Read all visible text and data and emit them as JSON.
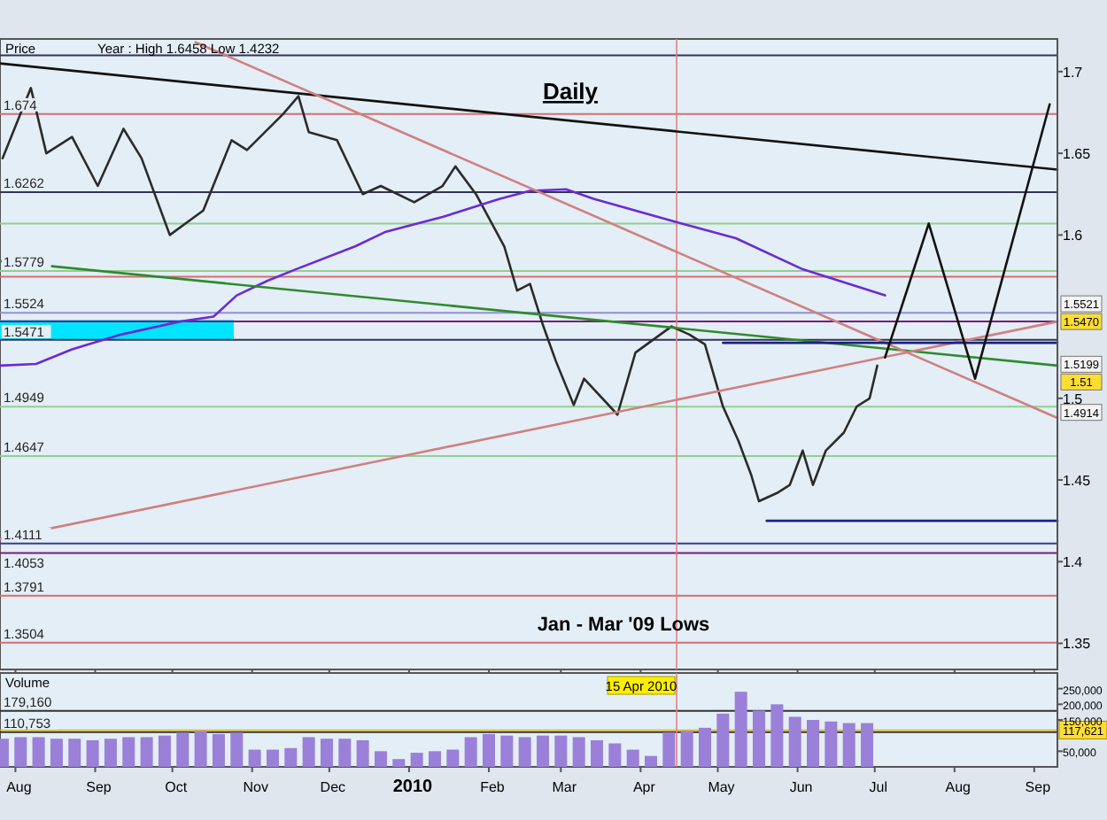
{
  "chart_data": [
    {
      "type": "line",
      "title": "Daily",
      "ylabel": "Price",
      "xlim": [
        "2009-07-26",
        "2010-09-10"
      ],
      "ylim": [
        1.334,
        1.72
      ],
      "xticks": [
        {
          "value": "2009-08-01",
          "label": null
        },
        {
          "value": "2009-09-01",
          "label": null
        },
        {
          "value": "2009-10-01",
          "label": null
        },
        {
          "value": "2009-11-01",
          "label": null
        },
        {
          "value": "2009-12-01",
          "label": null
        },
        {
          "value": "2010-01-01",
          "label": null
        },
        {
          "value": "2010-02-01",
          "label": null
        },
        {
          "value": "2010-03-01",
          "label": null
        },
        {
          "value": "2010-04-01",
          "label": null
        },
        {
          "value": "2010-05-01",
          "label": null
        },
        {
          "value": "2010-06-01",
          "label": null
        },
        {
          "value": "2010-07-01",
          "label": null
        },
        {
          "value": "2010-08-01",
          "label": null
        },
        {
          "value": "2010-09-01",
          "label": null
        }
      ],
      "yticks": [
        {
          "value": 1.35,
          "label": "1.35"
        },
        {
          "value": 1.4,
          "label": "1.4"
        },
        {
          "value": 1.45,
          "label": "1.45"
        },
        {
          "value": 1.5,
          "label": "1.5"
        },
        {
          "value": 1.6,
          "label": "1.6"
        },
        {
          "value": 1.65,
          "label": "1.65"
        },
        {
          "value": 1.7,
          "label": "1.7"
        }
      ],
      "tick_labels": "y",
      "series": [
        {
          "color": "#2b2b2b",
          "x": [
            "2009-07-27",
            "2009-08-07",
            "2009-08-13",
            "2009-08-23",
            "2009-09-02",
            "2009-09-12",
            "2009-09-19",
            "2009-09-30",
            "2009-10-13",
            "2009-10-24",
            "2009-10-30",
            "2009-11-13",
            "2009-11-19",
            "2009-11-23",
            "2009-12-04",
            "2009-12-14",
            "2009-12-21",
            "2010-01-03",
            "2010-01-14",
            "2010-01-19",
            "2010-01-27",
            "2010-02-07",
            "2010-02-12",
            "2010-02-17",
            "2010-02-22",
            "2010-02-27",
            "2010-03-06",
            "2010-03-10",
            "2010-03-23",
            "2010-03-30",
            "2010-04-13",
            "2010-04-20",
            "2010-04-26",
            "2010-05-03",
            "2010-05-09",
            "2010-05-14",
            "2010-05-17",
            "2010-05-24",
            "2010-05-29",
            "2010-06-03",
            "2010-06-07",
            "2010-06-12",
            "2010-06-19",
            "2010-06-24",
            "2010-06-29",
            "2010-07-02"
          ],
          "values": [
            1.647,
            1.69,
            1.65,
            1.66,
            1.63,
            1.665,
            1.647,
            1.6,
            1.615,
            1.658,
            1.652,
            1.674,
            1.685,
            1.663,
            1.658,
            1.625,
            1.63,
            1.62,
            1.63,
            1.642,
            1.625,
            1.593,
            1.566,
            1.57,
            1.545,
            1.523,
            1.496,
            1.512,
            1.49,
            1.528,
            1.544,
            1.539,
            1.533,
            1.495,
            1.474,
            1.453,
            1.437,
            1.442,
            1.447,
            1.468,
            1.447,
            1.468,
            1.479,
            1.495,
            1.5,
            1.52
          ]
        },
        {
          "color": "#6a2bd6",
          "x": [
            "2009-07-26",
            "2009-08-09",
            "2009-08-23",
            "2009-09-11",
            "2009-10-04",
            "2009-10-17",
            "2009-10-26",
            "2009-11-07",
            "2009-11-18",
            "2009-12-11",
            "2009-12-23",
            "2010-01-14",
            "2010-02-05",
            "2010-02-17",
            "2010-03-03",
            "2010-03-14",
            "2010-04-17",
            "2010-05-08",
            "2010-06-03",
            "2010-07-05"
          ],
          "values": [
            1.52,
            1.521,
            1.53,
            1.539,
            1.547,
            1.55,
            1.563,
            1.572,
            1.579,
            1.593,
            1.602,
            1.611,
            1.622,
            1.627,
            1.628,
            1.622,
            1.607,
            1.598,
            1.579,
            1.563
          ]
        },
        {
          "color": "#111111",
          "x": [
            "2009-07-26",
            "2010-09-10"
          ],
          "values": [
            1.705,
            1.64
          ]
        },
        {
          "color": "#2e8b2e",
          "x": [
            "2009-07-26",
            "2010-09-10"
          ],
          "values": [
            1.584,
            1.52
          ]
        },
        {
          "color": "#d08080",
          "x": [
            "2009-10-10",
            "2010-09-10"
          ],
          "values": [
            1.718,
            1.488
          ]
        },
        {
          "color": "#d08080",
          "x": [
            "2009-07-26",
            "2010-09-10"
          ],
          "values": [
            1.414,
            1.547
          ]
        },
        {
          "color": "#1a237e",
          "x": [
            "2010-05-20",
            "2010-09-10"
          ],
          "values": [
            1.425,
            1.425
          ]
        },
        {
          "color": "#1a237e",
          "x": [
            "2010-05-03",
            "2010-09-10"
          ],
          "values": [
            1.534,
            1.534
          ]
        },
        {
          "color": "#111111",
          "x": [
            "2010-07-05",
            "2010-07-22",
            "2010-08-09",
            "2010-09-07"
          ],
          "values": [
            1.525,
            1.607,
            1.512,
            1.68
          ]
        }
      ],
      "ref_lines": [
        {
          "axis": "y",
          "value": 1.71,
          "label": null,
          "color": "#333355"
        },
        {
          "axis": "y",
          "value": 1.674,
          "label": "1.674",
          "color": "#d07070"
        },
        {
          "axis": "y",
          "value": 1.6262,
          "label": "1.6262",
          "color": "#333355"
        },
        {
          "axis": "y",
          "value": 1.607,
          "label": null,
          "color": "#90d090"
        },
        {
          "axis": "y",
          "value": 1.5779,
          "label": "1.5779",
          "color": "#90d090"
        },
        {
          "axis": "y",
          "value": 1.5744,
          "label": null,
          "color": "#d07070"
        },
        {
          "axis": "y",
          "value": 1.5524,
          "label": "1.5524",
          "color": "#9090d0"
        },
        {
          "axis": "y",
          "value": 1.5471,
          "label": "1.5471",
          "color": "#7a1a7a"
        },
        {
          "axis": "y",
          "value": 1.5358,
          "label": null,
          "color": "#333355"
        },
        {
          "axis": "y",
          "value": 1.4949,
          "label": "1.4949",
          "color": "#90d090"
        },
        {
          "axis": "y",
          "value": 1.4647,
          "label": "1.4647",
          "color": "#90d090"
        },
        {
          "axis": "y",
          "value": 1.4111,
          "label": "1.4111",
          "color": "#3a3a9a"
        },
        {
          "axis": "y",
          "value": 1.4053,
          "label": "1.4053",
          "color": "#7a1a7a"
        },
        {
          "axis": "y",
          "value": 1.3791,
          "label": "1.3791",
          "color": "#d07070"
        },
        {
          "axis": "y",
          "value": 1.3504,
          "label": "1.3504",
          "color": "#d07070"
        },
        {
          "axis": "x",
          "value": "2010-04-15",
          "label": null,
          "color": "#e08080"
        }
      ],
      "bands": [
        {
          "axis": "y",
          "from": 1.536,
          "to": 1.548,
          "label": null,
          "color": "#00e5ff"
        }
      ],
      "annotations": [
        "Year : High 1.6458 Low 1.4232",
        "Jan - Mar '09 Lows",
        "1.5521",
        "1.5470",
        "1.5199",
        "1.51",
        "1.4914"
      ]
    },
    {
      "type": "bar",
      "title": "Volume",
      "xlim": [
        "2009-07-26",
        "2010-09-10"
      ],
      "ylim": [
        0,
        300000
      ],
      "xticks": [
        {
          "value": "2009-08-01",
          "label": "Aug"
        },
        {
          "value": "2009-09-01",
          "label": "Sep"
        },
        {
          "value": "2009-10-01",
          "label": "Oct"
        },
        {
          "value": "2009-11-01",
          "label": "Nov"
        },
        {
          "value": "2009-12-01",
          "label": "Dec"
        },
        {
          "value": "2010-01-01",
          "label": "2010"
        },
        {
          "value": "2010-02-01",
          "label": "Feb"
        },
        {
          "value": "2010-03-01",
          "label": "Mar"
        },
        {
          "value": "2010-04-01",
          "label": "Apr"
        },
        {
          "value": "2010-05-01",
          "label": "May"
        },
        {
          "value": "2010-06-01",
          "label": "Jun"
        },
        {
          "value": "2010-07-01",
          "label": "Jul"
        },
        {
          "value": "2010-08-01",
          "label": "Aug"
        },
        {
          "value": "2010-09-01",
          "label": "Sep"
        }
      ],
      "yticks": [
        {
          "value": 50000,
          "label": "50,000"
        },
        {
          "value": 150000,
          "label": "150,000"
        },
        {
          "value": 200000,
          "label": "200,000"
        },
        {
          "value": 250000,
          "label": "250,000"
        }
      ],
      "x": [
        "2009-07-27",
        "2009-08-03",
        "2009-08-10",
        "2009-08-17",
        "2009-08-24",
        "2009-08-31",
        "2009-09-07",
        "2009-09-14",
        "2009-09-21",
        "2009-09-28",
        "2009-10-05",
        "2009-10-12",
        "2009-10-19",
        "2009-10-26",
        "2009-11-02",
        "2009-11-09",
        "2009-11-16",
        "2009-11-23",
        "2009-11-30",
        "2009-12-07",
        "2009-12-14",
        "2009-12-21",
        "2009-12-28",
        "2010-01-04",
        "2010-01-11",
        "2010-01-18",
        "2010-01-25",
        "2010-02-01",
        "2010-02-08",
        "2010-02-15",
        "2010-02-22",
        "2010-03-01",
        "2010-03-08",
        "2010-03-15",
        "2010-03-22",
        "2010-03-29",
        "2010-04-05",
        "2010-04-12",
        "2010-04-19",
        "2010-04-26",
        "2010-05-03",
        "2010-05-10",
        "2010-05-17",
        "2010-05-24",
        "2010-05-31",
        "2010-06-07",
        "2010-06-14",
        "2010-06-21",
        "2010-06-28"
      ],
      "values": [
        90000,
        95000,
        95000,
        90000,
        90000,
        85000,
        90000,
        95000,
        95000,
        100000,
        110000,
        115000,
        105000,
        110000,
        55000,
        55000,
        60000,
        95000,
        90000,
        90000,
        85000,
        50000,
        25000,
        45000,
        50000,
        55000,
        95000,
        105000,
        100000,
        95000,
        100000,
        100000,
        95000,
        85000,
        75000,
        55000,
        35000,
        110000,
        115000,
        125000,
        170000,
        240000,
        180000,
        200000,
        160000,
        150000,
        145000,
        140000,
        140000
      ],
      "color": "#9a80d8",
      "ref_lines": [
        {
          "axis": "y",
          "value": 179160,
          "label": "179,160",
          "color": "#333333"
        },
        {
          "axis": "y",
          "value": 110753,
          "label": "110,753",
          "color": "#333333"
        },
        {
          "axis": "y",
          "value": 117621,
          "label": "117,621",
          "color": "#e0c000"
        },
        {
          "axis": "x",
          "value": "2010-04-15",
          "label": "15 Apr 2010",
          "color": "#e08080"
        }
      ]
    }
  ]
}
